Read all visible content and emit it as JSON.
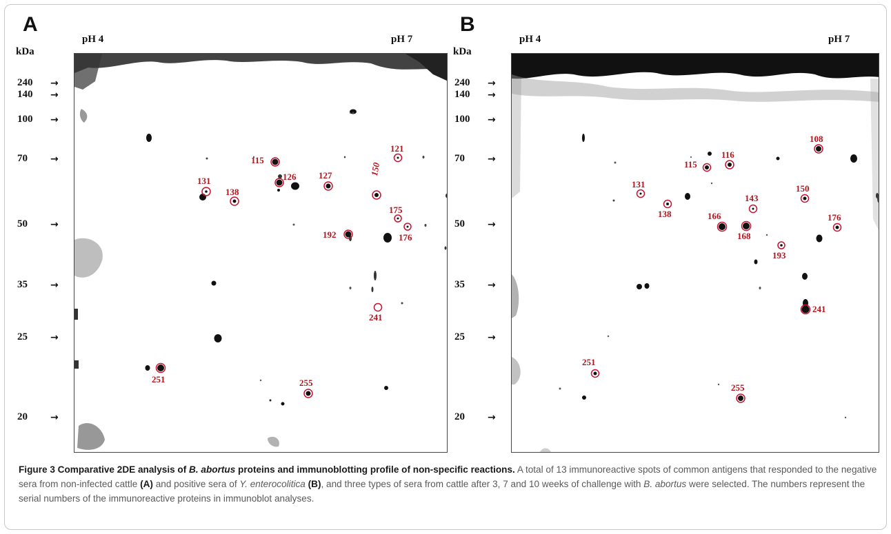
{
  "figure": {
    "panels": [
      {
        "id": "A",
        "letter": "A",
        "ph_left": "pH 4",
        "ph_right": "pH 7",
        "mass_unit": "kDa",
        "ticks": [
          "240",
          "140",
          "100",
          "70",
          "50",
          "35",
          "25",
          "20"
        ],
        "spots": [
          "115",
          "121",
          "126",
          "127",
          "131",
          "138",
          "150",
          "175",
          "176",
          "192",
          "241",
          "251",
          "255"
        ]
      },
      {
        "id": "B",
        "letter": "B",
        "ph_left": "pH 4",
        "ph_right": "pH 7",
        "mass_unit": "kDa",
        "ticks": [
          "240",
          "140",
          "100",
          "70",
          "50",
          "35",
          "25",
          "20"
        ],
        "spots": [
          "108",
          "115",
          "116",
          "131",
          "138",
          "143",
          "150",
          "166",
          "168",
          "176",
          "193",
          "241",
          "251",
          "255"
        ]
      }
    ],
    "caption": {
      "title_prefix": "Figure 3 Comparative 2DE analysis of ",
      "title_italic": "B. abortus",
      "title_suffix": " proteins and immunoblotting profile of non-specific reactions.",
      "text_1": " A total of 13 immunoreactive spots of common antigens that responded to the negative sera from non-infected cattle ",
      "label_a": "(A)",
      "text_2": " and positive sera of ",
      "italic_2": "Y. enterocolitica",
      "label_b": "(B)",
      "text_3": ", and three types of sera from cattle after 3, 7 and 10 weeks of challenge with ",
      "italic_3": "B. abortus",
      "text_4": " were selected. The numbers represent the serial numbers of the immunoreactive proteins in immunoblot analyses."
    }
  }
}
